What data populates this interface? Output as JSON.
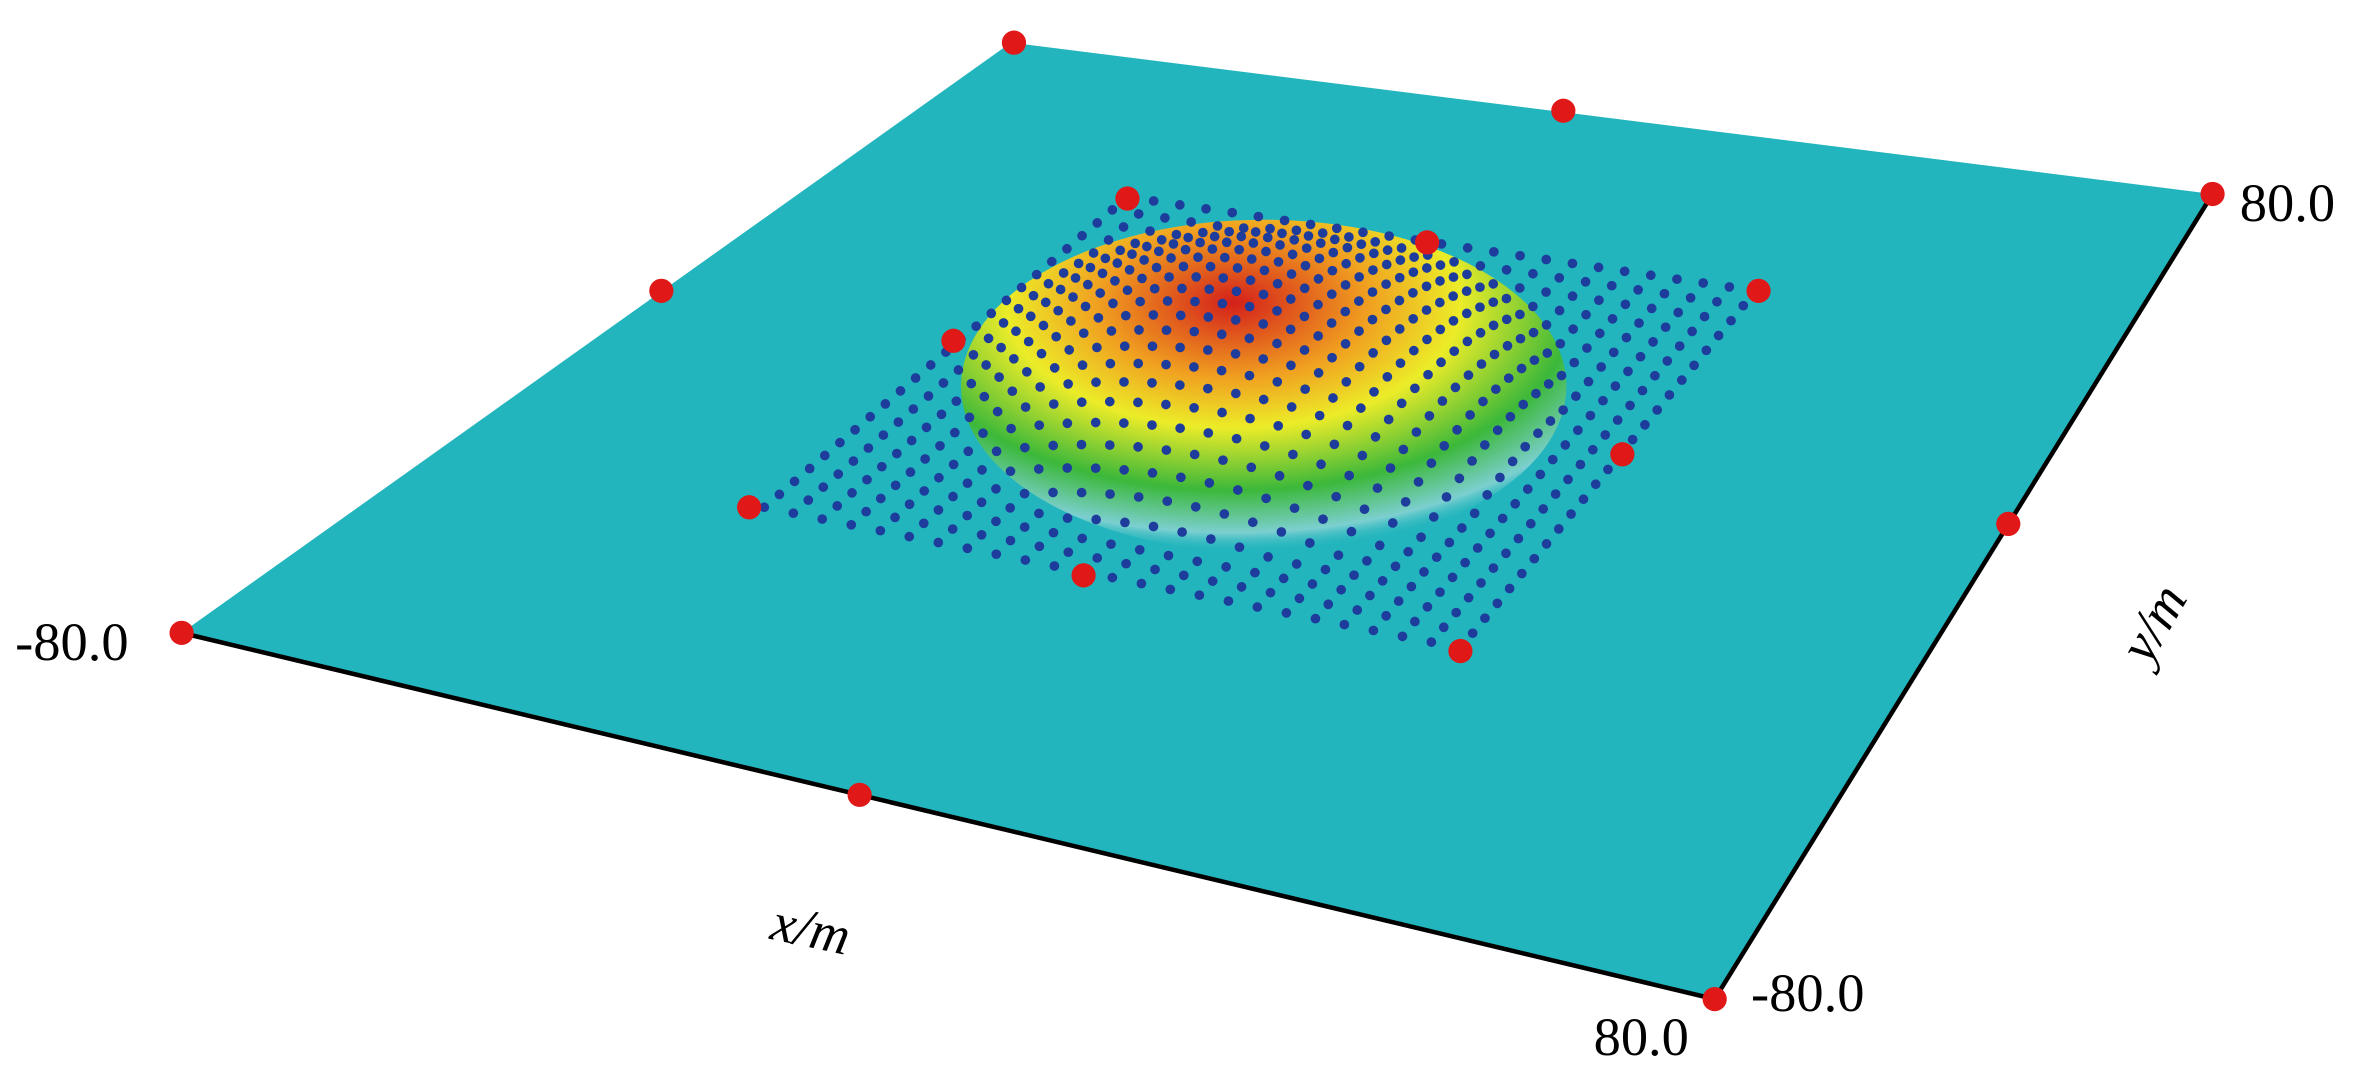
{
  "x_axis": {
    "label": "x/m",
    "min_label": "-80.0",
    "max_label": "80.0"
  },
  "y_axis": {
    "label": "y/m",
    "min_label": "-80.0",
    "max_label": "80.0"
  }
}
